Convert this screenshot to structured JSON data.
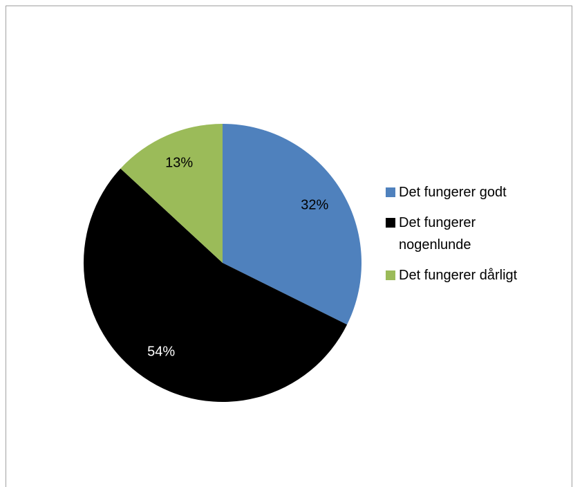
{
  "chart_data": {
    "type": "pie",
    "categories": [
      "Det fungerer godt",
      "Det fungerer nogenlunde",
      "Det fungerer dårligt"
    ],
    "values": [
      32,
      54,
      13
    ],
    "value_labels": [
      "32%",
      "54%",
      "13%"
    ],
    "colors": [
      "#4f81bd",
      "#000000",
      "#9bbb59"
    ],
    "legend": "right"
  }
}
